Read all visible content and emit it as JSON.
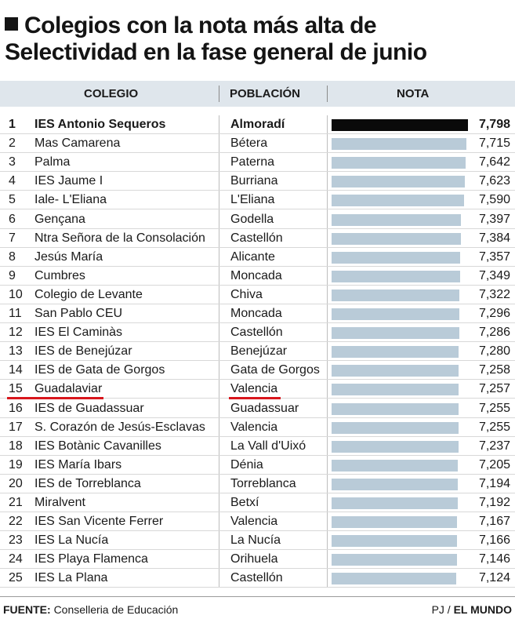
{
  "title": "Colegios con la nota más alta de Selectividad en la fase general de junio",
  "header": {
    "colegio": "COLEGIO",
    "poblacion": "POBLACIÓN",
    "nota": "NOTA"
  },
  "chart_data": {
    "type": "bar",
    "title": "Colegios con la nota más alta de Selectividad en la fase general de junio",
    "xlabel": "NOTA",
    "ylabel": "COLEGIO",
    "xlim": [
      0,
      7.798
    ],
    "highlight_color": "#0a0a0a",
    "bar_color": "#b9cbd8",
    "rows": [
      {
        "rank": "1",
        "colegio": "IES Antonio Sequeros",
        "poblacion": "Almoradí",
        "nota_label": "7,798",
        "value": 7.798
      },
      {
        "rank": "2",
        "colegio": "Mas Camarena",
        "poblacion": "Bétera",
        "nota_label": "7,715",
        "value": 7.715
      },
      {
        "rank": "3",
        "colegio": "Palma",
        "poblacion": "Paterna",
        "nota_label": "7,642",
        "value": 7.642
      },
      {
        "rank": "4",
        "colegio": "IES Jaume I",
        "poblacion": "Burriana",
        "nota_label": "7,623",
        "value": 7.623
      },
      {
        "rank": "5",
        "colegio": "Iale- L'Eliana",
        "poblacion": "L'Eliana",
        "nota_label": "7,590",
        "value": 7.59
      },
      {
        "rank": "6",
        "colegio": "Gençana",
        "poblacion": "Godella",
        "nota_label": "7,397",
        "value": 7.397
      },
      {
        "rank": "7",
        "colegio": "Ntra Señora de la Consolación",
        "poblacion": "Castellón",
        "nota_label": "7,384",
        "value": 7.384
      },
      {
        "rank": "8",
        "colegio": "Jesús María",
        "poblacion": "Alicante",
        "nota_label": "7,357",
        "value": 7.357
      },
      {
        "rank": "9",
        "colegio": "Cumbres",
        "poblacion": "Moncada",
        "nota_label": "7,349",
        "value": 7.349
      },
      {
        "rank": "10",
        "colegio": "Colegio de Levante",
        "poblacion": "Chiva",
        "nota_label": "7,322",
        "value": 7.322
      },
      {
        "rank": "11",
        "colegio": "San Pablo CEU",
        "poblacion": "Moncada",
        "nota_label": "7,296",
        "value": 7.296
      },
      {
        "rank": "12",
        "colegio": "IES El Caminàs",
        "poblacion": "Castellón",
        "nota_label": "7,286",
        "value": 7.286
      },
      {
        "rank": "13",
        "colegio": "IES de Benejúzar",
        "poblacion": "Benejúzar",
        "nota_label": "7,280",
        "value": 7.28
      },
      {
        "rank": "14",
        "colegio": "IES de Gata de Gorgos",
        "poblacion": "Gata de Gorgos",
        "nota_label": "7,258",
        "value": 7.258
      },
      {
        "rank": "15",
        "colegio": "Guadalaviar",
        "poblacion": "Valencia",
        "nota_label": "7,257",
        "value": 7.257,
        "underlined": true
      },
      {
        "rank": "16",
        "colegio": "IES de Guadassuar",
        "poblacion": "Guadassuar",
        "nota_label": "7,255",
        "value": 7.255
      },
      {
        "rank": "17",
        "colegio": "S. Corazón de Jesús-Esclavas",
        "poblacion": "Valencia",
        "nota_label": "7,255",
        "value": 7.255
      },
      {
        "rank": "18",
        "colegio": "IES Botànic Cavanilles",
        "poblacion": "La Vall d'Uixó",
        "nota_label": "7,237",
        "value": 7.237
      },
      {
        "rank": "19",
        "colegio": "IES María Ibars",
        "poblacion": "Dénia",
        "nota_label": "7,205",
        "value": 7.205
      },
      {
        "rank": "20",
        "colegio": "IES de Torreblanca",
        "poblacion": "Torreblanca",
        "nota_label": "7,194",
        "value": 7.194
      },
      {
        "rank": "21",
        "colegio": "Miralvent",
        "poblacion": "Betxí",
        "nota_label": "7,192",
        "value": 7.192
      },
      {
        "rank": "22",
        "colegio": "IES San Vicente Ferrer",
        "poblacion": "Valencia",
        "nota_label": "7,167",
        "value": 7.167
      },
      {
        "rank": "23",
        "colegio": "IES La Nucía",
        "poblacion": "La Nucía",
        "nota_label": "7,166",
        "value": 7.166
      },
      {
        "rank": "24",
        "colegio": "IES Playa Flamenca",
        "poblacion": "Orihuela",
        "nota_label": "7,146",
        "value": 7.146
      },
      {
        "rank": "25",
        "colegio": "IES La Plana",
        "poblacion": "Castellón",
        "nota_label": "7,124",
        "value": 7.124
      }
    ]
  },
  "footer": {
    "source_label": "FUENTE:",
    "source_value": "Conselleria de Educación",
    "credit_prefix": "PJ /",
    "credit_brand": "EL MUNDO"
  }
}
